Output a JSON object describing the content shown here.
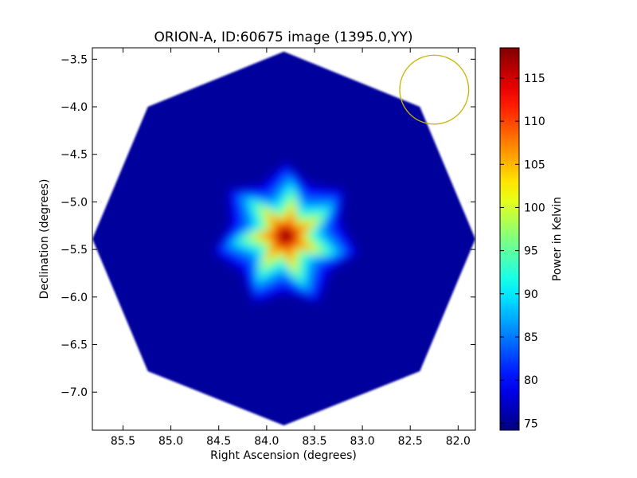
{
  "chart_data": {
    "type": "heatmap",
    "title": "ORION-A, ID:60675 image (1395.0,YY)",
    "xlabel": "Right Ascension (degrees)",
    "ylabel": "Declination (degrees)",
    "xlim": [
      85.82,
      81.82
    ],
    "ylim": [
      -7.4,
      -3.38
    ],
    "x_ticks": [
      85.5,
      85.0,
      84.5,
      84.0,
      83.5,
      83.0,
      82.5,
      82.0
    ],
    "x_tick_labels": [
      "85.5",
      "85.0",
      "84.5",
      "84.0",
      "83.5",
      "83.0",
      "82.5",
      "82.0"
    ],
    "y_ticks": [
      -3.5,
      -4.0,
      -4.5,
      -5.0,
      -5.5,
      -6.0,
      -6.5,
      -7.0
    ],
    "y_tick_labels": [
      "−3.5",
      "−4.0",
      "−4.5",
      "−5.0",
      "−5.5",
      "−6.0",
      "−6.5",
      "−7.0"
    ],
    "colormap": "jet",
    "colorbar": {
      "label": "Power in Kelvin",
      "vmin": 74.2,
      "vmax": 118.5,
      "ticks": [
        75,
        80,
        85,
        90,
        95,
        100,
        105,
        110,
        115
      ],
      "tick_labels": [
        "75",
        "80",
        "85",
        "90",
        "95",
        "100",
        "105",
        "110",
        "115"
      ]
    },
    "image_region": {
      "shape": "octagon",
      "center": [
        83.82,
        -5.39
      ],
      "vertices": [
        [
          83.82,
          -3.42
        ],
        [
          82.4,
          -4.0
        ],
        [
          81.82,
          -5.39
        ],
        [
          82.4,
          -6.78
        ],
        [
          83.82,
          -7.35
        ],
        [
          85.24,
          -6.78
        ],
        [
          85.82,
          -5.39
        ],
        [
          85.24,
          -4.0
        ]
      ],
      "background_value": 75.5
    },
    "peak": {
      "center": [
        83.8,
        -5.36
      ],
      "peak_value": 118.5,
      "arms": 7
    },
    "beam_circle": {
      "center": [
        82.25,
        -3.82
      ],
      "radius_deg": 0.36,
      "color": "#c8b400"
    }
  }
}
